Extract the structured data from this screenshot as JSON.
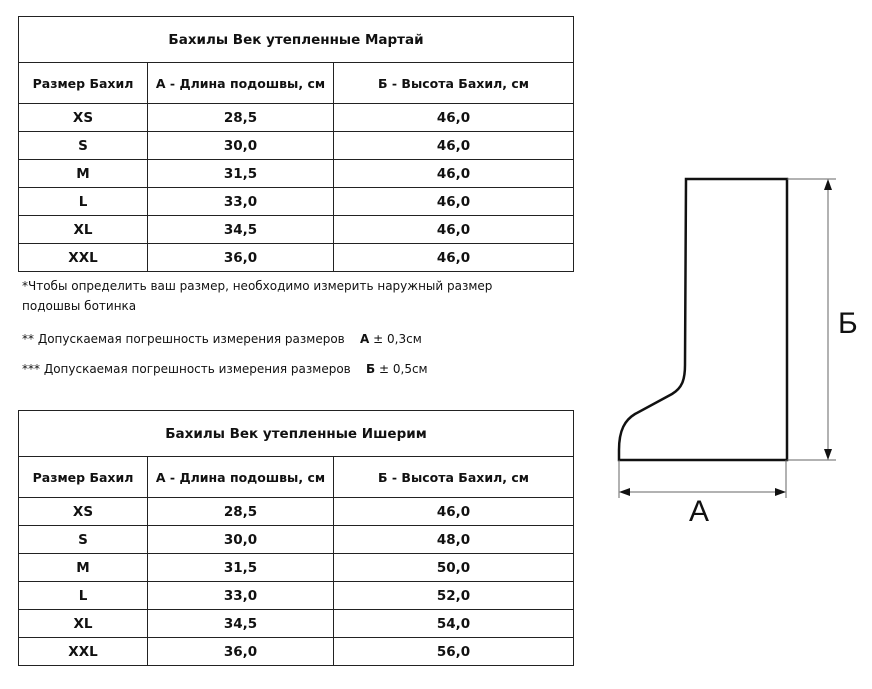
{
  "tables": [
    {
      "title": "Бахилы Век утепленные Мартай",
      "headers": [
        "Размер Бахил",
        "А - Длина подошвы, см",
        "Б - Высота Бахил, см"
      ],
      "rows": [
        [
          "XS",
          "28,5",
          "46,0"
        ],
        [
          "S",
          "30,0",
          "46,0"
        ],
        [
          "M",
          "31,5",
          "46,0"
        ],
        [
          "L",
          "33,0",
          "46,0"
        ],
        [
          "XL",
          "34,5",
          "46,0"
        ],
        [
          "XXL",
          "36,0",
          "46,0"
        ]
      ]
    },
    {
      "title": "Бахилы Век утепленные Ишерим",
      "headers": [
        "Размер Бахил",
        "А - Длина подошвы, см",
        "Б - Высота Бахил, см"
      ],
      "rows": [
        [
          "XS",
          "28,5",
          "46,0"
        ],
        [
          "S",
          "30,0",
          "48,0"
        ],
        [
          "M",
          "31,5",
          "50,0"
        ],
        [
          "L",
          "33,0",
          "52,0"
        ],
        [
          "XL",
          "34,5",
          "54,0"
        ],
        [
          "XXL",
          "36,0",
          "56,0"
        ]
      ]
    }
  ],
  "notes": {
    "n1": "*Чтобы определить ваш размер, необходимо измерить наружный размер подошвы ботинка",
    "n2_text": "** Допускаемая погрешность измерения размеров",
    "n2_letter": "А",
    "n2_value": "± 0,3см",
    "n3_text": "*** Допускаемая погрешность измерения размеров",
    "n3_letter": "Б",
    "n3_value": "± 0,5см"
  },
  "diagram": {
    "label_a": "А",
    "label_b": "Б"
  }
}
